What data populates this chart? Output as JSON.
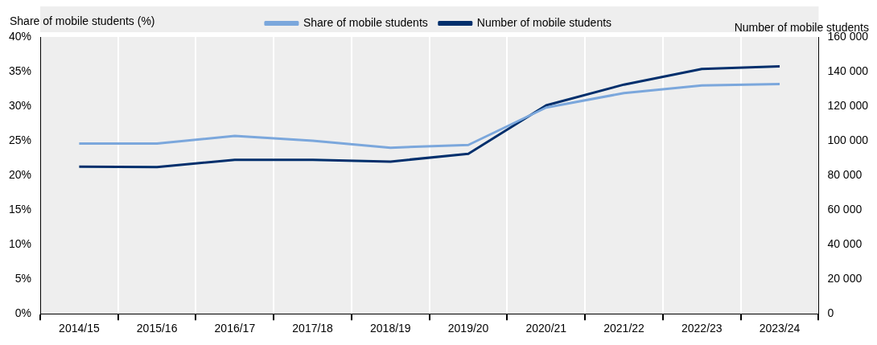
{
  "chart_data": {
    "type": "line",
    "ylabel": "Share of mobile students (%)",
    "y2label": "Number of mobile students",
    "categories": [
      "2014/15",
      "2015/16",
      "2016/17",
      "2017/18",
      "2018/19",
      "2019/20",
      "2020/21",
      "2021/22",
      "2022/23",
      "2023/24"
    ],
    "series": [
      {
        "name": "Share of mobile students",
        "color": "#7ba7dc",
        "values": [
          24.6,
          24.6,
          25.7,
          25.0,
          24.0,
          24.4,
          29.8,
          31.9,
          33.0,
          33.2
        ]
      },
      {
        "name": "Number of mobile students",
        "color": "#002f6c",
        "axis": "y2",
        "values": [
          85000,
          84800,
          89000,
          89000,
          88000,
          92500,
          120500,
          132500,
          141500,
          143000
        ]
      }
    ],
    "ylim": [
      0,
      40
    ],
    "yticks": [
      {
        "value": 0,
        "label": "0%"
      },
      {
        "value": 5,
        "label": "5%"
      },
      {
        "value": 10,
        "label": "10%"
      },
      {
        "value": 15,
        "label": "15%"
      },
      {
        "value": 20,
        "label": "20%"
      },
      {
        "value": 25,
        "label": "25%"
      },
      {
        "value": 30,
        "label": "30%"
      },
      {
        "value": 35,
        "label": "35%"
      },
      {
        "value": 40,
        "label": "40%"
      }
    ],
    "y2lim": [
      0,
      160000
    ],
    "y2ticks": [
      {
        "value": 0,
        "label": "0"
      },
      {
        "value": 20000,
        "label": "20 000"
      },
      {
        "value": 40000,
        "label": "40 000"
      },
      {
        "value": 60000,
        "label": "60 000"
      },
      {
        "value": 80000,
        "label": "80 000"
      },
      {
        "value": 100000,
        "label": "100 000"
      },
      {
        "value": 120000,
        "label": "120 000"
      },
      {
        "value": 140000,
        "label": "140 000"
      },
      {
        "value": 160000,
        "label": "160 000"
      }
    ],
    "grid": "x",
    "legend": "top",
    "marker": "none",
    "line_style": "solid"
  }
}
